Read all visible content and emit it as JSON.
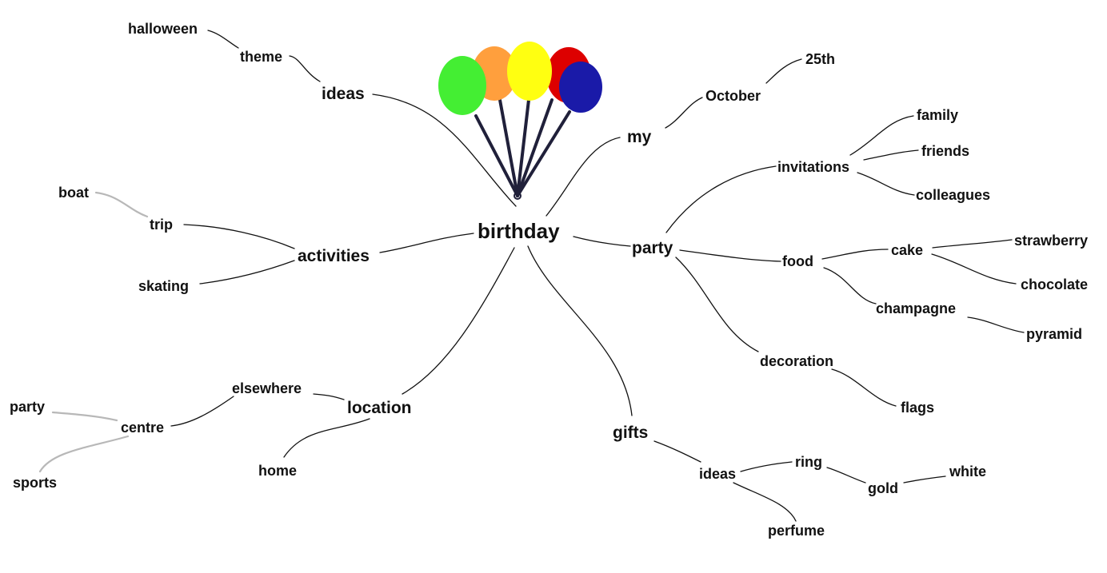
{
  "mind_map": {
    "central": "birthday",
    "colors": {
      "text": "#111111",
      "line": "#111111",
      "faint_line": "#b8b8b8",
      "balloon_green": "#44ee33",
      "balloon_orange": "#ff9f3d",
      "balloon_yellow": "#ffff11",
      "balloon_red": "#dd0000",
      "balloon_blue": "#1a1aa8",
      "balloon_string": "#20203a"
    },
    "image": "balloon-bunch-icon",
    "labels": {
      "ideas_top": "ideas",
      "theme": "theme",
      "halloween": "halloween",
      "my": "my",
      "october": "October",
      "day_25th": "25th",
      "party": "party",
      "invitations": "invitations",
      "family": "family",
      "friends": "friends",
      "colleagues": "colleagues",
      "food": "food",
      "cake": "cake",
      "strawberry": "strawberry",
      "chocolate": "chocolate",
      "champagne": "champagne",
      "pyramid": "pyramid",
      "decoration": "decoration",
      "flags": "flags",
      "activities": "activities",
      "trip": "trip",
      "boat": "boat",
      "skating": "skating",
      "location": "location",
      "elsewhere": "elsewhere",
      "centre": "centre",
      "party_centre": "party",
      "sports": "sports",
      "home": "home",
      "gifts": "gifts",
      "ideas_gifts": "ideas",
      "ring": "ring",
      "gold": "gold",
      "white": "white",
      "perfume": "perfume"
    }
  }
}
